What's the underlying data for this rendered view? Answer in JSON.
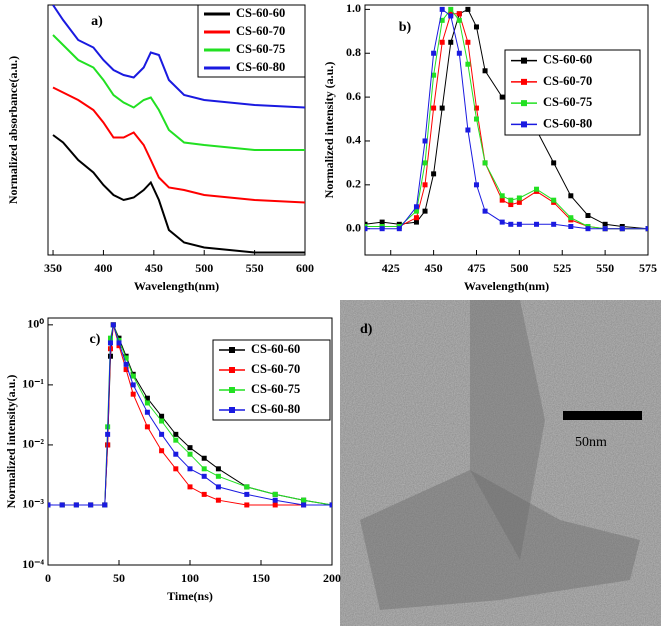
{
  "chart_data": [
    {
      "type": "line",
      "title": "a)",
      "x_label": "Wavelength(nm)",
      "y_label": "Normalized absorbance(a.u.)",
      "x": [
        350,
        360,
        375,
        390,
        400,
        410,
        420,
        430,
        440,
        447,
        455,
        465,
        480,
        500,
        550,
        600
      ],
      "xlim": [
        345,
        600
      ],
      "xticks": [
        350,
        400,
        450,
        500,
        550,
        600
      ],
      "ylim": [
        0,
        1
      ],
      "log_y": false,
      "marker": "none",
      "series": [
        {
          "name": "CS-60-60",
          "color": "#000000",
          "values": [
            0.48,
            0.45,
            0.38,
            0.33,
            0.28,
            0.24,
            0.22,
            0.23,
            0.26,
            0.29,
            0.22,
            0.1,
            0.05,
            0.03,
            0.01,
            0.01
          ]
        },
        {
          "name": "CS-60-70",
          "color": "#ff0000",
          "values": [
            0.67,
            0.65,
            0.62,
            0.58,
            0.53,
            0.47,
            0.47,
            0.49,
            0.44,
            0.38,
            0.31,
            0.27,
            0.26,
            0.24,
            0.22,
            0.21
          ]
        },
        {
          "name": "CS-60-75",
          "color": "#22e022",
          "values": [
            0.88,
            0.84,
            0.78,
            0.75,
            0.7,
            0.64,
            0.61,
            0.59,
            0.62,
            0.63,
            0.58,
            0.5,
            0.45,
            0.44,
            0.42,
            0.42
          ]
        },
        {
          "name": "CS-60-80",
          "color": "#1a1ae0",
          "values": [
            1.0,
            0.94,
            0.86,
            0.83,
            0.78,
            0.74,
            0.72,
            0.71,
            0.75,
            0.81,
            0.8,
            0.7,
            0.64,
            0.62,
            0.6,
            0.59
          ]
        }
      ]
    },
    {
      "type": "line",
      "title": "b)",
      "x_label": "Wavelength(nm)",
      "y_label": "Normalized intensity (a.u.)",
      "x": [
        410,
        420,
        430,
        440,
        445,
        450,
        455,
        460,
        465,
        470,
        475,
        480,
        490,
        495,
        500,
        510,
        520,
        530,
        540,
        550,
        560,
        575
      ],
      "xlim": [
        410,
        575
      ],
      "xticks": [
        425,
        450,
        475,
        500,
        525,
        550,
        575
      ],
      "ylim": [
        -0.12,
        1.02
      ],
      "yticks": [
        {
          "value": 0,
          "label": "0.0"
        },
        {
          "value": 0.2,
          "label": "0.2"
        },
        {
          "value": 0.4,
          "label": "0.4"
        },
        {
          "value": 0.6,
          "label": "0.6"
        },
        {
          "value": 0.8,
          "label": "0.8"
        },
        {
          "value": 1,
          "label": "1.0"
        }
      ],
      "log_y": false,
      "marker": "square",
      "series": [
        {
          "name": "CS-60-60",
          "color": "#000000",
          "values": [
            0.02,
            0.03,
            0.02,
            0.03,
            0.08,
            0.25,
            0.55,
            0.85,
            0.98,
            1.0,
            0.92,
            0.72,
            0.6,
            0.62,
            0.58,
            0.45,
            0.3,
            0.15,
            0.06,
            0.02,
            0.01,
            0.0
          ]
        },
        {
          "name": "CS-60-70",
          "color": "#ff0000",
          "values": [
            0.01,
            0.01,
            0.01,
            0.05,
            0.2,
            0.55,
            0.85,
            0.98,
            0.98,
            0.85,
            0.55,
            0.3,
            0.13,
            0.11,
            0.12,
            0.17,
            0.12,
            0.04,
            0.01,
            0.0,
            0.0,
            0.0
          ]
        },
        {
          "name": "CS-60-75",
          "color": "#22e022",
          "values": [
            0.01,
            0.01,
            0.01,
            0.08,
            0.3,
            0.7,
            0.95,
            1.0,
            0.95,
            0.75,
            0.5,
            0.3,
            0.15,
            0.13,
            0.14,
            0.18,
            0.13,
            0.05,
            0.01,
            0.0,
            0.0,
            0.0
          ]
        },
        {
          "name": "CS-60-80",
          "color": "#1a1ae0",
          "values": [
            0.0,
            0.0,
            0.0,
            0.1,
            0.4,
            0.8,
            1.0,
            0.97,
            0.8,
            0.45,
            0.2,
            0.08,
            0.03,
            0.02,
            0.02,
            0.02,
            0.02,
            0.01,
            0.0,
            0.0,
            0.0,
            0.0
          ]
        }
      ]
    },
    {
      "type": "line",
      "title": "c)",
      "x_label": "Time(ns)",
      "y_label": "Normalized intensity(a.u.)",
      "x": [
        0,
        10,
        20,
        30,
        40,
        42,
        44,
        46,
        50,
        55,
        60,
        70,
        80,
        90,
        100,
        110,
        120,
        140,
        160,
        180,
        200
      ],
      "xlim": [
        0,
        200
      ],
      "xticks": [
        0,
        50,
        100,
        150,
        200
      ],
      "ylim": [
        0.0001,
        1.3
      ],
      "yticks": [
        {
          "value": 0.0001,
          "label": "10⁻⁴"
        },
        {
          "value": 0.001,
          "label": "10⁻³"
        },
        {
          "value": 0.01,
          "label": "10⁻²"
        },
        {
          "value": 0.1,
          "label": "10⁻¹"
        },
        {
          "value": 1,
          "label": "10⁰"
        }
      ],
      "log_y": true,
      "marker": "square",
      "series": [
        {
          "name": "CS-60-60",
          "color": "#000000",
          "values": [
            0.001,
            0.001,
            0.001,
            0.001,
            0.001,
            0.01,
            0.3,
            1,
            0.6,
            0.3,
            0.15,
            0.06,
            0.03,
            0.015,
            0.009,
            0.006,
            0.004,
            0.002,
            0.0015,
            0.0012,
            0.001
          ]
        },
        {
          "name": "CS-60-70",
          "color": "#ff0000",
          "values": [
            0.001,
            0.001,
            0.001,
            0.001,
            0.001,
            0.01,
            0.4,
            1,
            0.45,
            0.18,
            0.07,
            0.02,
            0.008,
            0.004,
            0.002,
            0.0015,
            0.0012,
            0.001,
            0.001,
            0.001,
            0.001
          ]
        },
        {
          "name": "CS-60-75",
          "color": "#22e022",
          "values": [
            0.001,
            0.001,
            0.001,
            0.001,
            0.001,
            0.02,
            0.6,
            1,
            0.55,
            0.28,
            0.14,
            0.05,
            0.025,
            0.012,
            0.007,
            0.004,
            0.003,
            0.002,
            0.0015,
            0.0012,
            0.001
          ]
        },
        {
          "name": "CS-60-80",
          "color": "#1a1ae0",
          "values": [
            0.001,
            0.001,
            0.001,
            0.001,
            0.001,
            0.015,
            0.5,
            1,
            0.5,
            0.22,
            0.1,
            0.035,
            0.015,
            0.007,
            0.004,
            0.003,
            0.002,
            0.0015,
            0.0012,
            0.001,
            0.001
          ]
        }
      ]
    }
  ],
  "image_panel": {
    "label": "d)",
    "scale_bar": "50nm"
  }
}
